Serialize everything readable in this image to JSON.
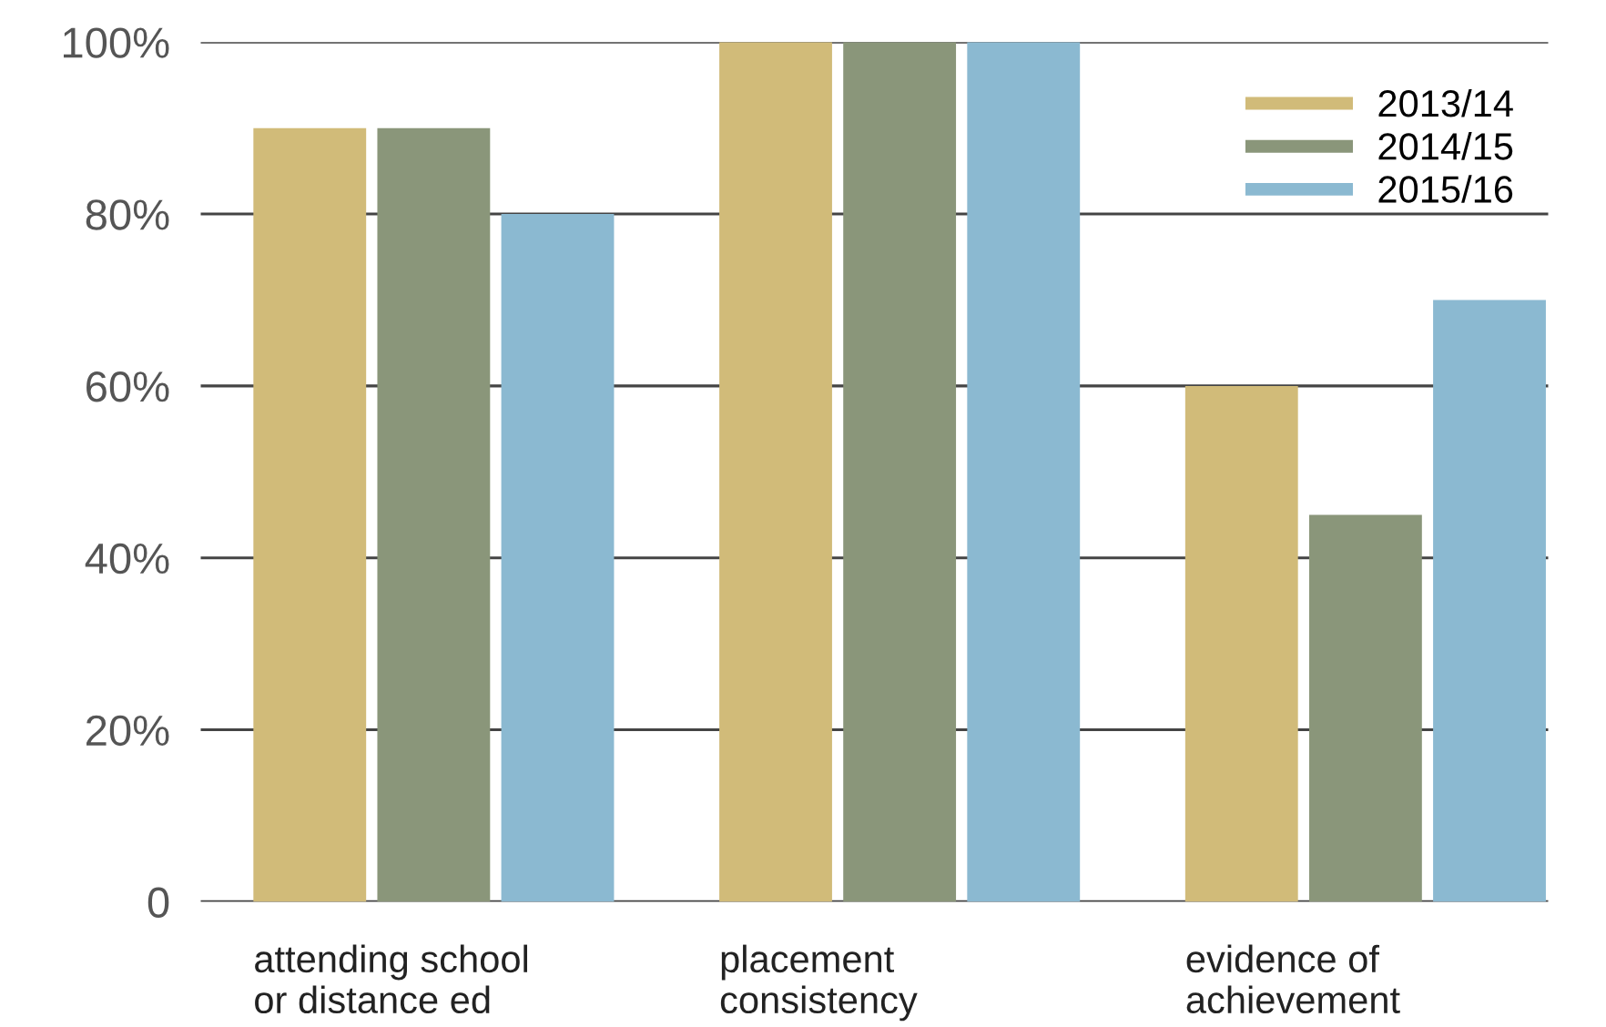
{
  "chart_data": {
    "type": "bar",
    "categories": [
      "attending school\nor distance ed",
      "placement\nconsistency",
      "evidence of\nachievement"
    ],
    "series": [
      {
        "name": "2013/14",
        "color": "#d1bb79",
        "values": [
          90,
          100,
          60
        ]
      },
      {
        "name": "2014/15",
        "color": "#8a967a",
        "values": [
          90,
          100,
          45
        ]
      },
      {
        "name": "2015/16",
        "color": "#8bb9d1",
        "values": [
          80,
          100,
          70
        ]
      }
    ],
    "ylim": [
      0,
      100
    ],
    "yticks": [
      {
        "value": 0,
        "label": "0"
      },
      {
        "value": 20,
        "label": "20%"
      },
      {
        "value": 40,
        "label": "40%"
      },
      {
        "value": 60,
        "label": "60%"
      },
      {
        "value": 80,
        "label": "80%"
      },
      {
        "value": 100,
        "label": "100%"
      }
    ],
    "grid": "y",
    "legend": "top right"
  }
}
